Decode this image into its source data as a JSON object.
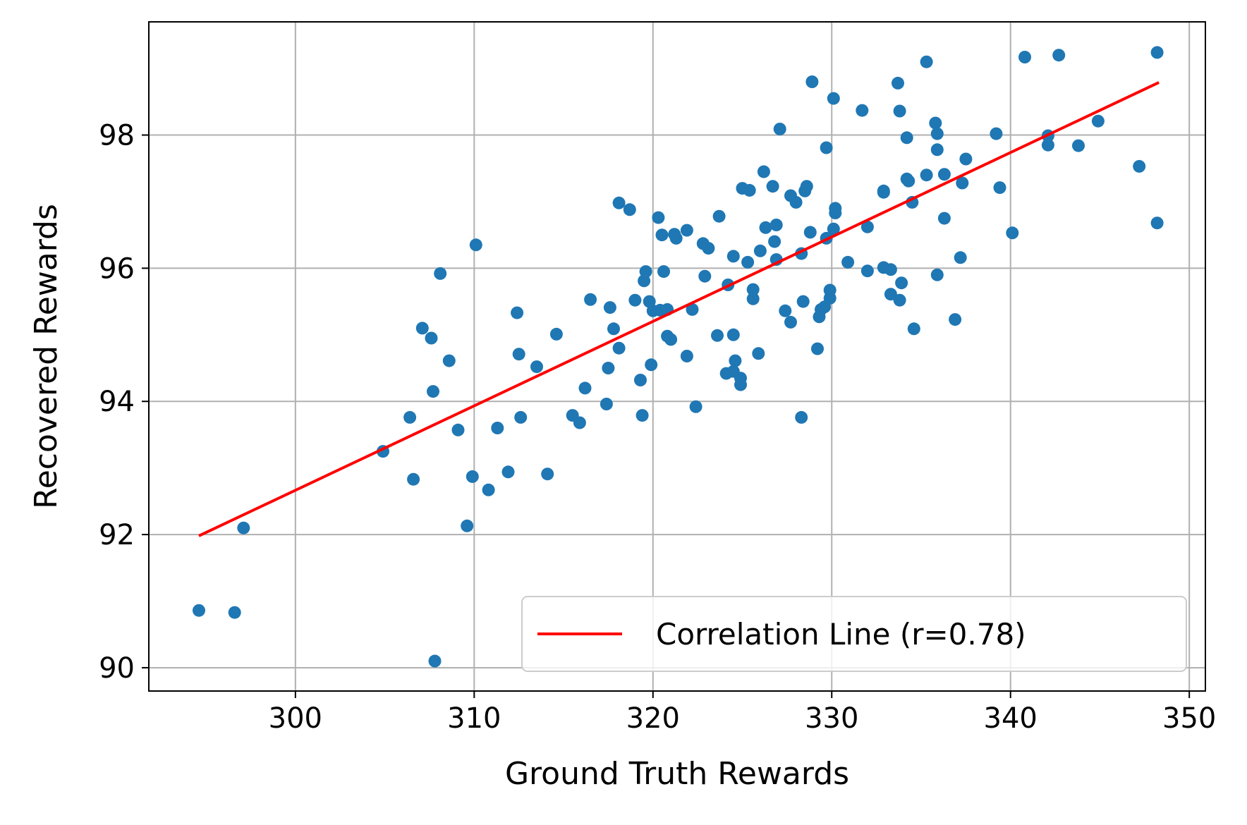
{
  "chart_data": {
    "type": "scatter",
    "xlabel": "Ground Truth Rewards",
    "ylabel": "Recovered Rewards",
    "xlim": [
      291.8,
      350.9
    ],
    "ylim": [
      89.65,
      99.7
    ],
    "xticks": [
      300,
      310,
      320,
      330,
      340,
      350
    ],
    "yticks": [
      90,
      92,
      94,
      96,
      98
    ],
    "grid": true,
    "legend_position": "lower-right",
    "colors": {
      "points": "#1f77b4",
      "line": "#ff0000",
      "grid": "#b0b0b0",
      "axes": "#000000"
    },
    "series": [
      {
        "type": "scatter",
        "points": [
          [
            294.6,
            90.86
          ],
          [
            296.6,
            90.83
          ],
          [
            297.1,
            92.1
          ],
          [
            304.9,
            93.25
          ],
          [
            306.4,
            93.76
          ],
          [
            306.6,
            92.83
          ],
          [
            307.1,
            95.1
          ],
          [
            307.6,
            94.95
          ],
          [
            307.7,
            94.15
          ],
          [
            307.8,
            90.1
          ],
          [
            308.1,
            95.92
          ],
          [
            308.6,
            94.61
          ],
          [
            309.1,
            93.57
          ],
          [
            309.6,
            92.13
          ],
          [
            309.9,
            92.87
          ],
          [
            310.1,
            96.35
          ],
          [
            310.8,
            92.67
          ],
          [
            311.3,
            93.6
          ],
          [
            311.9,
            92.94
          ],
          [
            312.4,
            95.33
          ],
          [
            312.5,
            94.71
          ],
          [
            312.6,
            93.76
          ],
          [
            313.5,
            94.52
          ],
          [
            314.1,
            92.91
          ],
          [
            314.6,
            95.01
          ],
          [
            315.5,
            93.79
          ],
          [
            315.9,
            93.68
          ],
          [
            316.2,
            94.2
          ],
          [
            316.5,
            95.53
          ],
          [
            317.4,
            93.96
          ],
          [
            317.5,
            94.5
          ],
          [
            317.6,
            95.41
          ],
          [
            317.8,
            95.09
          ],
          [
            318.1,
            94.8
          ],
          [
            318.1,
            96.98
          ],
          [
            318.7,
            96.88
          ],
          [
            319.0,
            95.52
          ],
          [
            319.3,
            94.32
          ],
          [
            319.4,
            93.79
          ],
          [
            319.5,
            95.81
          ],
          [
            319.6,
            95.95
          ],
          [
            319.8,
            95.5
          ],
          [
            319.9,
            94.55
          ],
          [
            320.0,
            95.36
          ],
          [
            320.3,
            96.76
          ],
          [
            320.4,
            95.37
          ],
          [
            320.5,
            96.5
          ],
          [
            320.6,
            95.95
          ],
          [
            320.8,
            95.38
          ],
          [
            320.8,
            94.98
          ],
          [
            321.0,
            94.93
          ],
          [
            321.2,
            96.51
          ],
          [
            321.3,
            96.45
          ],
          [
            321.9,
            94.68
          ],
          [
            321.9,
            96.57
          ],
          [
            322.2,
            95.38
          ],
          [
            322.4,
            93.92
          ],
          [
            322.8,
            96.37
          ],
          [
            322.9,
            95.88
          ],
          [
            323.1,
            96.3
          ],
          [
            323.6,
            94.99
          ],
          [
            323.7,
            96.78
          ],
          [
            324.1,
            94.42
          ],
          [
            324.2,
            95.75
          ],
          [
            324.5,
            94.45
          ],
          [
            324.5,
            96.18
          ],
          [
            324.5,
            95.0
          ],
          [
            324.6,
            94.61
          ],
          [
            324.9,
            94.25
          ],
          [
            324.9,
            94.35
          ],
          [
            325.0,
            97.2
          ],
          [
            325.3,
            96.09
          ],
          [
            325.4,
            97.17
          ],
          [
            325.6,
            95.68
          ],
          [
            325.6,
            95.54
          ],
          [
            325.9,
            94.72
          ],
          [
            326.0,
            96.26
          ],
          [
            326.2,
            97.45
          ],
          [
            326.3,
            96.61
          ],
          [
            326.7,
            97.23
          ],
          [
            326.8,
            96.4
          ],
          [
            326.9,
            96.13
          ],
          [
            326.9,
            96.65
          ],
          [
            327.1,
            98.09
          ],
          [
            327.4,
            95.36
          ],
          [
            327.7,
            95.19
          ],
          [
            327.7,
            97.09
          ],
          [
            328.0,
            96.99
          ],
          [
            328.3,
            96.22
          ],
          [
            328.3,
            93.76
          ],
          [
            328.4,
            95.5
          ],
          [
            328.5,
            97.16
          ],
          [
            328.6,
            97.23
          ],
          [
            328.8,
            96.54
          ],
          [
            328.9,
            98.8
          ],
          [
            329.2,
            94.79
          ],
          [
            329.3,
            95.27
          ],
          [
            329.4,
            95.38
          ],
          [
            329.6,
            95.42
          ],
          [
            329.7,
            96.45
          ],
          [
            329.7,
            97.81
          ],
          [
            329.9,
            95.55
          ],
          [
            329.9,
            95.67
          ],
          [
            330.1,
            96.59
          ],
          [
            330.1,
            98.55
          ],
          [
            330.2,
            96.9
          ],
          [
            330.2,
            96.83
          ],
          [
            330.9,
            96.09
          ],
          [
            331.7,
            98.37
          ],
          [
            332.0,
            95.96
          ],
          [
            332.0,
            96.62
          ],
          [
            332.9,
            96.01
          ],
          [
            332.9,
            97.16
          ],
          [
            332.9,
            97.14
          ],
          [
            333.3,
            95.98
          ],
          [
            333.3,
            95.61
          ],
          [
            333.7,
            98.78
          ],
          [
            333.8,
            98.36
          ],
          [
            333.8,
            95.52
          ],
          [
            333.9,
            95.78
          ],
          [
            334.2,
            97.34
          ],
          [
            334.2,
            97.96
          ],
          [
            334.3,
            97.31
          ],
          [
            334.5,
            96.99
          ],
          [
            334.6,
            95.09
          ],
          [
            335.3,
            97.4
          ],
          [
            335.3,
            99.1
          ],
          [
            335.8,
            98.18
          ],
          [
            335.9,
            98.02
          ],
          [
            335.9,
            97.78
          ],
          [
            335.9,
            95.9
          ],
          [
            336.3,
            97.41
          ],
          [
            336.3,
            96.75
          ],
          [
            336.9,
            95.23
          ],
          [
            337.2,
            96.16
          ],
          [
            337.3,
            97.28
          ],
          [
            337.5,
            97.64
          ],
          [
            339.2,
            98.02
          ],
          [
            339.4,
            97.21
          ],
          [
            340.1,
            96.53
          ],
          [
            340.8,
            99.17
          ],
          [
            342.1,
            97.99
          ],
          [
            342.1,
            97.85
          ],
          [
            342.7,
            99.2
          ],
          [
            343.8,
            97.84
          ],
          [
            344.9,
            98.21
          ],
          [
            347.2,
            97.53
          ],
          [
            348.2,
            99.24
          ],
          [
            348.2,
            96.68
          ]
        ]
      },
      {
        "type": "line",
        "name": "Correlation Line (r=0.78)",
        "points": [
          [
            294.6,
            91.98
          ],
          [
            348.3,
            98.79
          ]
        ]
      }
    ]
  }
}
